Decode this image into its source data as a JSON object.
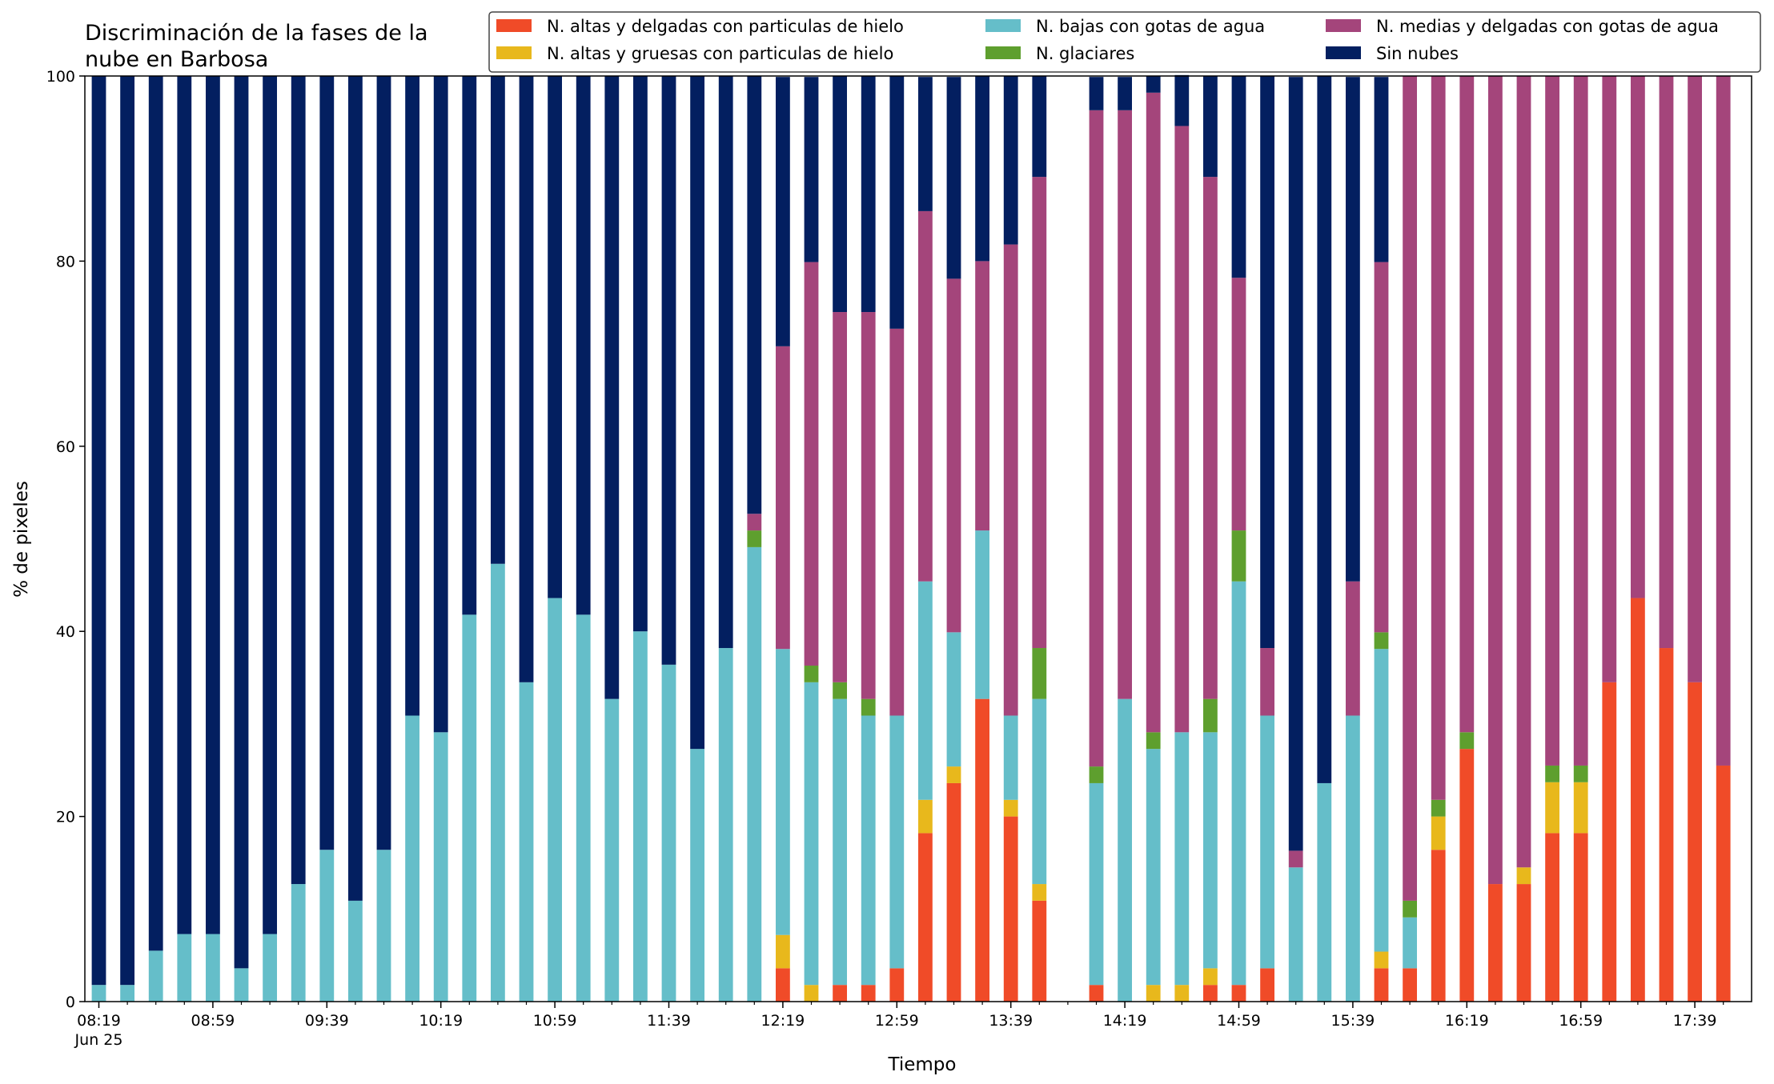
{
  "chart_data": {
    "type": "bar",
    "stacked": true,
    "title_lines": [
      "Discriminación de la fases de la",
      "nube en Barbosa"
    ],
    "xlabel": "Tiempo",
    "ylabel": "% de pixeles",
    "ylim": [
      0,
      100
    ],
    "yticks": [
      "0",
      "20",
      "40",
      "60",
      "80",
      "100"
    ],
    "xticks": [
      {
        "index": 0,
        "label": "08:19",
        "sublabel": "Jun 25"
      },
      {
        "index": 4,
        "label": "08:59"
      },
      {
        "index": 8,
        "label": "09:39"
      },
      {
        "index": 12,
        "label": "10:19"
      },
      {
        "index": 16,
        "label": "10:59"
      },
      {
        "index": 20,
        "label": "11:39"
      },
      {
        "index": 24,
        "label": "12:19"
      },
      {
        "index": 28,
        "label": "12:59"
      },
      {
        "index": 32,
        "label": "13:39"
      },
      {
        "index": 36,
        "label": "14:19"
      },
      {
        "index": 40,
        "label": "14:59"
      },
      {
        "index": 44,
        "label": "15:39"
      },
      {
        "index": 48,
        "label": "16:19"
      },
      {
        "index": 52,
        "label": "16:59"
      },
      {
        "index": 56,
        "label": "17:39"
      }
    ],
    "categories": [
      "08:19",
      "08:29",
      "08:39",
      "08:49",
      "08:59",
      "09:09",
      "09:19",
      "09:29",
      "09:39",
      "09:49",
      "09:59",
      "10:09",
      "10:19",
      "10:29",
      "10:39",
      "10:49",
      "10:59",
      "11:09",
      "11:19",
      "11:29",
      "11:39",
      "11:49",
      "11:59",
      "12:09",
      "12:19",
      "12:29",
      "12:39",
      "12:49",
      "12:59",
      "13:09",
      "13:19",
      "13:29",
      "13:39",
      "13:49",
      "13:59",
      "14:09",
      "14:19",
      "14:29",
      "14:39",
      "14:49",
      "14:59",
      "15:09",
      "15:19",
      "15:29",
      "15:39",
      "15:49",
      "15:59",
      "16:09",
      "16:19",
      "16:29",
      "16:39",
      "16:49",
      "16:59",
      "17:09",
      "17:19",
      "17:29",
      "17:39",
      "17:49"
    ],
    "legend_placement": "top-right",
    "series": [
      {
        "name": "N. altas y delgadas con particulas de hielo",
        "color": "#f04b28",
        "values": [
          0,
          0,
          0,
          0,
          0,
          0,
          0,
          0,
          0,
          0,
          0,
          0,
          0,
          0,
          0,
          0,
          0,
          0,
          0,
          0,
          0,
          0,
          0,
          0,
          3.6,
          0,
          1.8,
          1.8,
          3.6,
          18.2,
          23.6,
          32.7,
          20,
          10.9,
          null,
          1.8,
          0,
          0,
          0,
          1.8,
          1.8,
          3.6,
          0,
          0,
          0,
          3.6,
          3.6,
          16.4,
          27.3,
          12.7,
          12.7,
          18.2,
          18.2,
          34.5,
          43.6,
          38.2,
          34.5,
          25.5
        ]
      },
      {
        "name": "N. altas y gruesas con particulas de hielo",
        "color": "#e8b81c",
        "values": [
          0,
          0,
          0,
          0,
          0,
          0,
          0,
          0,
          0,
          0,
          0,
          0,
          0,
          0,
          0,
          0,
          0,
          0,
          0,
          0,
          0,
          0,
          0,
          0,
          3.6,
          1.8,
          0,
          0,
          0,
          3.6,
          1.8,
          0,
          1.8,
          1.8,
          null,
          0,
          0,
          1.8,
          1.8,
          1.8,
          0,
          0,
          0,
          0,
          0,
          1.8,
          0,
          3.6,
          0,
          0,
          1.8,
          5.5,
          5.5,
          0,
          0,
          0,
          0,
          0
        ]
      },
      {
        "name": "N. bajas con gotas de agua",
        "color": "#65bec9",
        "values": [
          1.8,
          1.8,
          5.5,
          7.3,
          7.3,
          3.6,
          7.3,
          12.7,
          16.4,
          10.9,
          16.4,
          30.9,
          29.1,
          41.8,
          47.3,
          34.5,
          43.6,
          41.8,
          32.7,
          40,
          36.4,
          27.3,
          38.2,
          49.1,
          30.9,
          32.7,
          30.9,
          29.1,
          27.3,
          23.6,
          14.5,
          18.2,
          9.1,
          20,
          null,
          21.8,
          32.7,
          25.5,
          27.3,
          25.5,
          43.6,
          27.3,
          14.5,
          23.6,
          30.9,
          32.7,
          5.5,
          0,
          0,
          0,
          0,
          0,
          0,
          0,
          0,
          0,
          0,
          0
        ]
      },
      {
        "name": "N. glaciares",
        "color": "#5e9f2e",
        "values": [
          0,
          0,
          0,
          0,
          0,
          0,
          0,
          0,
          0,
          0,
          0,
          0,
          0,
          0,
          0,
          0,
          0,
          0,
          0,
          0,
          0,
          0,
          0,
          1.8,
          0,
          1.8,
          1.8,
          1.8,
          0,
          0,
          0,
          0,
          0,
          5.5,
          null,
          1.8,
          0,
          1.8,
          0,
          3.6,
          5.5,
          0,
          0,
          0,
          0,
          1.8,
          1.8,
          1.8,
          1.8,
          0,
          0,
          1.8,
          1.8,
          0,
          0,
          0,
          0,
          0
        ]
      },
      {
        "name": "N. medias y delgadas con gotas de agua",
        "color": "#a4457b",
        "values": [
          0,
          0,
          0,
          0,
          0,
          0,
          0,
          0,
          0,
          0,
          0,
          0,
          0,
          0,
          0,
          0,
          0,
          0,
          0,
          0,
          0,
          0,
          0,
          1.8,
          32.7,
          43.6,
          40,
          41.8,
          41.8,
          40,
          38.2,
          29.1,
          50.9,
          50.9,
          null,
          70.9,
          63.6,
          69.1,
          65.5,
          56.4,
          27.3,
          7.3,
          1.8,
          0,
          14.5,
          40,
          89.1,
          78.2,
          70.9,
          87.3,
          85.5,
          74.5,
          74.5,
          65.5,
          56.4,
          61.8,
          65.5,
          74.5
        ]
      },
      {
        "name": "Sin nubes",
        "color": "#031f60",
        "values": [
          98.2,
          98.2,
          94.5,
          92.7,
          92.7,
          96.4,
          92.7,
          87.3,
          83.6,
          89.1,
          83.6,
          69.1,
          70.9,
          58.2,
          52.7,
          65.5,
          56.4,
          58.2,
          67.3,
          60,
          63.6,
          72.7,
          61.8,
          47.3,
          29.1,
          20,
          25.5,
          25.5,
          27.3,
          14.5,
          21.8,
          20,
          18.2,
          10.9,
          null,
          3.6,
          3.6,
          1.8,
          5.5,
          10.9,
          21.8,
          61.8,
          83.6,
          76.4,
          54.5,
          20,
          0,
          0,
          0,
          0,
          0,
          0,
          0,
          0,
          0,
          0,
          0,
          0
        ]
      }
    ]
  }
}
